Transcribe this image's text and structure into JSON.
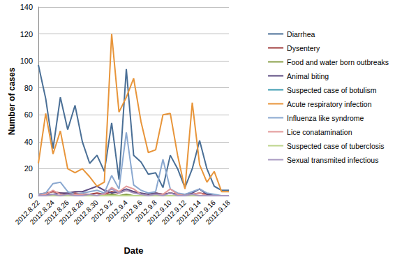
{
  "chart_data": {
    "type": "line",
    "x_label": "Date",
    "y_label": "Number of cases",
    "categories": [
      "2012.8.22",
      null,
      "2012.8.24",
      null,
      "2012.8.26",
      null,
      "2012.8.28",
      null,
      "2012.8.30",
      null,
      "2012.9.2",
      null,
      "2012.9.4",
      null,
      "2012.9.6",
      null,
      "2012.9.8",
      null,
      "2012.9.10",
      null,
      "2012.9.12",
      null,
      "2012.9.14",
      null,
      "2012.9.16",
      null,
      "2012.9.18"
    ],
    "ylim": [
      0,
      140
    ],
    "yticks": [
      0,
      20,
      40,
      60,
      80,
      100,
      120,
      140
    ],
    "grid": true,
    "legend": "right",
    "series": [
      {
        "name": "Diarrhea",
        "color": "#4a6f96",
        "values": [
          97,
          72,
          35,
          73,
          49,
          67,
          40,
          24,
          30,
          18,
          54,
          12,
          94,
          30,
          25,
          16,
          17,
          6,
          30,
          20,
          6,
          20,
          41,
          20,
          7,
          4,
          4
        ]
      },
      {
        "name": "Dysentery",
        "color": "#a03c3c",
        "values": [
          1,
          2,
          3,
          2,
          1,
          2,
          1,
          1,
          2,
          1,
          3,
          2,
          4,
          3,
          1,
          1,
          2,
          1,
          2,
          1,
          0,
          1,
          2,
          1,
          0,
          0,
          0
        ]
      },
      {
        "name": "Food and water born outbreaks",
        "color": "#8aa04a",
        "values": [
          0,
          0,
          0,
          0,
          0,
          0,
          0,
          0,
          0,
          0,
          1,
          0,
          1,
          0,
          0,
          0,
          0,
          0,
          0,
          0,
          0,
          0,
          0,
          0,
          0,
          0,
          0
        ]
      },
      {
        "name": "Animal biting",
        "color": "#5c4a80",
        "values": [
          0,
          1,
          1,
          2,
          2,
          3,
          3,
          5,
          7,
          4,
          2,
          3,
          5,
          3,
          2,
          1,
          2,
          1,
          2,
          1,
          1,
          2,
          5,
          1,
          0,
          0,
          0
        ]
      },
      {
        "name": "Suspected case of botulism",
        "color": "#3a9bb0",
        "values": [
          0,
          0,
          0,
          0,
          0,
          0,
          0,
          0,
          0,
          0,
          0,
          0,
          0,
          0,
          0,
          0,
          0,
          0,
          0,
          0,
          0,
          0,
          0,
          0,
          0,
          0,
          0
        ]
      },
      {
        "name": "Acute respiratory infection",
        "color": "#e8953a",
        "values": [
          24,
          61,
          31,
          48,
          20,
          17,
          20,
          14,
          7,
          10,
          120,
          62,
          73,
          87,
          55,
          32,
          34,
          60,
          61,
          30,
          5,
          69,
          23,
          10,
          18,
          3,
          3
        ]
      },
      {
        "name": "Influenza like syndrome",
        "color": "#8aa8d0",
        "values": [
          1,
          2,
          9,
          10,
          3,
          1,
          2,
          3,
          4,
          2,
          15,
          5,
          47,
          8,
          4,
          2,
          3,
          27,
          5,
          2,
          1,
          3,
          5,
          2,
          1,
          0,
          0
        ]
      },
      {
        "name": "Lice conatamination",
        "color": "#e39a9a",
        "values": [
          0,
          1,
          4,
          1,
          0,
          1,
          1,
          0,
          0,
          1,
          6,
          3,
          7,
          5,
          1,
          0,
          1,
          1,
          5,
          1,
          0,
          1,
          2,
          0,
          0,
          0,
          0
        ]
      },
      {
        "name": "Suspected case of tuberclosis",
        "color": "#bcd48a",
        "values": [
          0,
          0,
          0,
          0,
          0,
          0,
          0,
          0,
          0,
          0,
          0,
          0,
          0,
          0,
          0,
          0,
          0,
          0,
          0,
          0,
          0,
          0,
          0,
          0,
          0,
          0,
          0
        ]
      },
      {
        "name": "Sexual transmited infectious",
        "color": "#a898c0",
        "values": [
          0,
          0,
          1,
          0,
          1,
          0,
          0,
          1,
          0,
          2,
          5,
          2,
          4,
          2,
          1,
          0,
          1,
          0,
          2,
          0,
          0,
          1,
          0,
          0,
          0,
          0,
          0
        ]
      }
    ]
  }
}
